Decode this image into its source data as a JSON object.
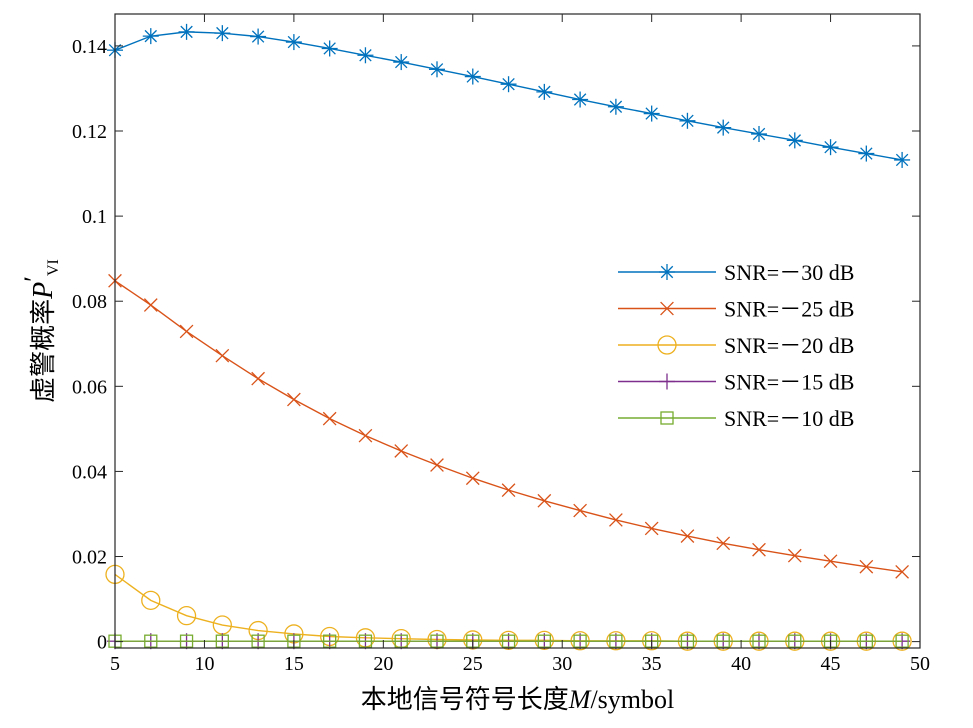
{
  "chart_data": {
    "type": "line",
    "xlabel_prefix": "本地信号符号长度",
    "xlabel_var": "M",
    "xlabel_unit": "/symbol",
    "ylabel_prefix": "虚警概率",
    "ylabel_var": "P",
    "ylabel_prime": "′",
    "ylabel_sub": "VI",
    "xlim": [
      5,
      50
    ],
    "ylim": [
      -0.0015,
      0.1475
    ],
    "xticks": [
      5,
      10,
      15,
      20,
      25,
      30,
      35,
      40,
      45,
      50
    ],
    "yticks": [
      0,
      0.02,
      0.04,
      0.06,
      0.08,
      0.1,
      0.12,
      0.14
    ],
    "ytick_labels": [
      "0",
      "0.02",
      "0.04",
      "0.06",
      "0.08",
      "0.1",
      "0.12",
      "0.14"
    ],
    "legend_position": "right",
    "x": [
      5,
      7,
      9,
      11,
      13,
      15,
      17,
      19,
      21,
      23,
      25,
      27,
      29,
      31,
      33,
      35,
      37,
      39,
      41,
      43,
      45,
      47,
      49
    ],
    "series": [
      {
        "name": "SNR=－30 dB",
        "color": "#0072BD",
        "marker": "asterisk",
        "values": [
          0.139,
          0.1423,
          0.1433,
          0.143,
          0.1422,
          0.1409,
          0.1394,
          0.1378,
          0.1362,
          0.1345,
          0.1328,
          0.131,
          0.1292,
          0.1274,
          0.1257,
          0.1241,
          0.1224,
          0.1208,
          0.1193,
          0.1178,
          0.1162,
          0.1147,
          0.1132
        ]
      },
      {
        "name": "SNR=－25 dB",
        "color": "#D95319",
        "marker": "x",
        "values": [
          0.0848,
          0.0791,
          0.0729,
          0.0672,
          0.0618,
          0.0569,
          0.0524,
          0.0484,
          0.0448,
          0.0415,
          0.0384,
          0.0356,
          0.0331,
          0.0308,
          0.0286,
          0.0266,
          0.0248,
          0.0231,
          0.0216,
          0.0202,
          0.0189,
          0.0176,
          0.0164
        ]
      },
      {
        "name": "SNR=－20 dB",
        "color": "#EDB120",
        "marker": "circle",
        "values": [
          0.0158,
          0.0097,
          0.0061,
          0.0039,
          0.0026,
          0.0018,
          0.0012,
          0.0009,
          0.0007,
          0.0005,
          0.0004,
          0.0003,
          0.0003,
          0.0002,
          0.0002,
          0.0002,
          0.0001,
          0.0001,
          0.0001,
          0.0001,
          0.0001,
          0.0001,
          0.0001
        ]
      },
      {
        "name": "SNR=－15 dB",
        "color": "#7E2F8E",
        "marker": "plus",
        "values": [
          0.0001,
          0.0001,
          0.0001,
          0.0001,
          0.0001,
          0.0001,
          0.0001,
          0.0001,
          0.0001,
          0.0001,
          0.0001,
          0.0001,
          0.0001,
          0.0001,
          0.0001,
          0.0001,
          0.0001,
          0.0001,
          0.0001,
          0.0001,
          0.0001,
          0.0001,
          0.0001
        ]
      },
      {
        "name": "SNR=－10 dB",
        "color": "#77AC30",
        "marker": "square",
        "values": [
          0.0001,
          0.0001,
          0.0001,
          0.0001,
          0.0001,
          0.0001,
          0.0001,
          0.0001,
          0.0001,
          0.0001,
          0.0001,
          0.0001,
          0.0001,
          0.0001,
          0.0001,
          0.0001,
          0.0001,
          0.0001,
          0.0001,
          0.0001,
          0.0001,
          0.0001,
          0.0001
        ]
      }
    ]
  }
}
